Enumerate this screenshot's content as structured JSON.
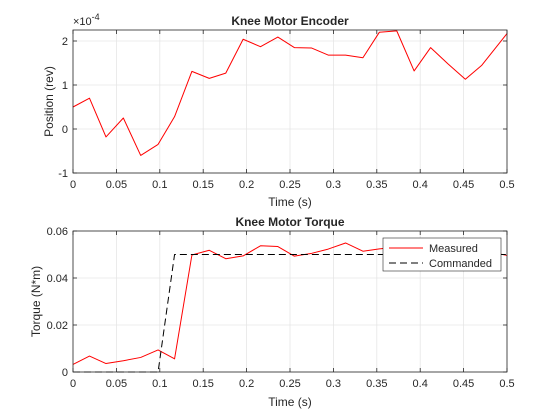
{
  "chart_data": [
    {
      "type": "line",
      "title": "Knee Motor Encoder",
      "xlabel": "Time (s)",
      "ylabel": "Position (rev)",
      "exponent_label": "×10",
      "exponent_power": "-4",
      "xlim": [
        0,
        0.5
      ],
      "ylim": [
        -1,
        2.25
      ],
      "xticks": [
        0,
        0.05,
        0.1,
        0.15,
        0.2,
        0.25,
        0.3,
        0.35,
        0.4,
        0.45,
        0.5
      ],
      "xtick_labels": [
        "0",
        "0.05",
        "0.1",
        "0.15",
        "0.2",
        "0.25",
        "0.3",
        "0.35",
        "0.4",
        "0.45",
        "0.5"
      ],
      "yticks": [
        -1,
        0,
        1,
        2
      ],
      "ytick_labels": [
        "-1",
        "0",
        "1",
        "2"
      ],
      "grid": true,
      "color": "#ff0000",
      "series": [
        {
          "values_x": [
            0,
            0.019,
            0.038,
            0.058,
            0.078,
            0.098,
            0.117,
            0.137,
            0.157,
            0.176,
            0.196,
            0.216,
            0.236,
            0.255,
            0.275,
            0.294,
            0.314,
            0.334,
            0.353,
            0.373,
            0.393,
            0.412,
            0.432,
            0.452,
            0.471,
            0.5
          ],
          "values_y": [
            0.5,
            0.7,
            -0.18,
            0.25,
            -0.6,
            -0.35,
            0.28,
            1.31,
            1.15,
            1.27,
            2.04,
            1.87,
            2.09,
            1.85,
            1.84,
            1.68,
            1.68,
            1.62,
            2.2,
            2.23,
            1.32,
            1.85,
            1.48,
            1.13,
            1.45,
            2.17
          ]
        }
      ]
    },
    {
      "type": "line",
      "title": "Knee Motor Torque",
      "xlabel": "Time (s)",
      "ylabel": "Torque (N*m)",
      "xlim": [
        0,
        0.5
      ],
      "ylim": [
        0,
        0.06
      ],
      "xticks": [
        0,
        0.05,
        0.1,
        0.15,
        0.2,
        0.25,
        0.3,
        0.35,
        0.4,
        0.45,
        0.5
      ],
      "xtick_labels": [
        "0",
        "0.05",
        "0.1",
        "0.15",
        "0.2",
        "0.25",
        "0.3",
        "0.35",
        "0.4",
        "0.45",
        "0.5"
      ],
      "yticks": [
        0,
        0.02,
        0.04,
        0.06
      ],
      "ytick_labels": [
        "0",
        "0.02",
        "0.04",
        "0.06"
      ],
      "grid": true,
      "legend": "top-right",
      "series": [
        {
          "name": "Measured",
          "color": "#ff0000",
          "dash": "",
          "values_x": [
            0,
            0.019,
            0.038,
            0.058,
            0.078,
            0.098,
            0.117,
            0.137,
            0.157,
            0.176,
            0.196,
            0.216,
            0.236,
            0.255,
            0.275,
            0.294,
            0.314,
            0.334,
            0.353,
            0.373,
            0.393,
            0.412,
            0.432,
            0.452,
            0.471,
            0.5
          ],
          "values_y": [
            0.0032,
            0.0068,
            0.0036,
            0.0048,
            0.0062,
            0.0094,
            0.0056,
            0.0498,
            0.0518,
            0.0482,
            0.0494,
            0.0537,
            0.0534,
            0.0493,
            0.0505,
            0.0523,
            0.0549,
            0.0514,
            0.0524,
            0.0532,
            0.051,
            0.0518,
            0.0508,
            0.0512,
            0.0518,
            0.0496
          ]
        },
        {
          "name": "Commanded",
          "color": "#000000",
          "dash": "7,4",
          "values_x": [
            0,
            0.098,
            0.117,
            0.5
          ],
          "values_y": [
            0,
            0,
            0.05,
            0.05
          ]
        }
      ]
    }
  ]
}
